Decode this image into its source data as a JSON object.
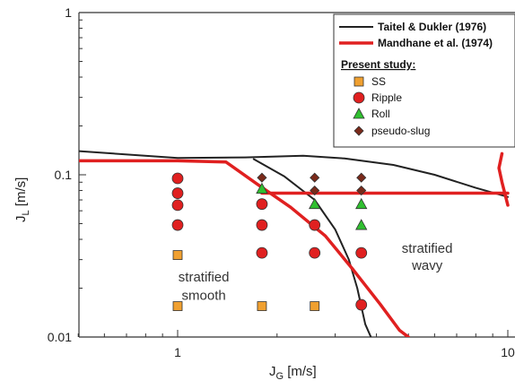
{
  "chart_data": {
    "type": "scatter",
    "x_axis": {
      "label_main": "J",
      "label_sub": "G",
      "label_unit": " [m/s]",
      "scale": "log",
      "range": [
        0.5,
        10
      ],
      "tick_labels": [
        {
          "value": 1,
          "label": "1"
        },
        {
          "value": 10,
          "label": "10"
        }
      ]
    },
    "y_axis": {
      "label_main": "J",
      "label_sub": "L",
      "label_unit": " [m/s]",
      "scale": "log",
      "range": [
        0.01,
        1
      ],
      "tick_labels": [
        {
          "value": 1,
          "label": "1"
        },
        {
          "value": 0.1,
          "label": "0.1"
        },
        {
          "value": 0.01,
          "label": "0.01"
        }
      ]
    },
    "grid": false,
    "legend": {
      "placement": "top-right",
      "lines": [
        {
          "name": "Taitel & Dukler (1976)",
          "color": "#222222"
        },
        {
          "name": "Mandhane et al. (1974)",
          "color": "#e02020"
        }
      ],
      "heading": "Present study:",
      "markers": [
        {
          "name": "SS",
          "shape": "square",
          "color": "#f0a030"
        },
        {
          "name": "Ripple",
          "shape": "circle",
          "color": "#e02020"
        },
        {
          "name": "Roll",
          "shape": "triangle",
          "color": "#30c030"
        },
        {
          "name": "pseudo-slug",
          "shape": "diamond",
          "color": "#7a2a1a"
        }
      ]
    },
    "series": [
      {
        "name": "SS",
        "shape": "square",
        "color": "#f0a030",
        "points": [
          [
            1.0,
            0.032
          ],
          [
            1.0,
            0.0155
          ],
          [
            1.8,
            0.0155
          ],
          [
            2.6,
            0.0155
          ]
        ]
      },
      {
        "name": "Ripple",
        "shape": "circle",
        "color": "#e02020",
        "points": [
          [
            1.0,
            0.095
          ],
          [
            1.0,
            0.077
          ],
          [
            1.0,
            0.065
          ],
          [
            1.0,
            0.049
          ],
          [
            1.8,
            0.066
          ],
          [
            1.8,
            0.049
          ],
          [
            1.8,
            0.033
          ],
          [
            2.6,
            0.049
          ],
          [
            2.6,
            0.033
          ],
          [
            3.6,
            0.033
          ],
          [
            3.6,
            0.0158
          ]
        ]
      },
      {
        "name": "Roll",
        "shape": "triangle",
        "color": "#30c030",
        "points": [
          [
            1.8,
            0.082
          ],
          [
            2.6,
            0.066
          ],
          [
            3.6,
            0.066
          ],
          [
            3.6,
            0.049
          ]
        ]
      },
      {
        "name": "pseudo-slug",
        "shape": "diamond",
        "color": "#7a2a1a",
        "points": [
          [
            1.8,
            0.096
          ],
          [
            2.6,
            0.096
          ],
          [
            2.6,
            0.08
          ],
          [
            3.6,
            0.096
          ],
          [
            3.6,
            0.08
          ]
        ]
      }
    ],
    "curves": [
      {
        "name": "Taitel & Dukler (1976)",
        "color": "#222222",
        "width": 2,
        "segments": [
          [
            [
              0.5,
              0.14
            ],
            [
              1.0,
              0.127
            ],
            [
              1.6,
              0.128
            ],
            [
              2.4,
              0.131
            ],
            [
              3.2,
              0.126
            ],
            [
              4.5,
              0.115
            ],
            [
              6.0,
              0.1
            ],
            [
              8.0,
              0.083
            ],
            [
              10.0,
              0.073
            ]
          ],
          [
            [
              1.7,
              0.125
            ],
            [
              2.1,
              0.098
            ],
            [
              2.6,
              0.07
            ],
            [
              3.0,
              0.046
            ],
            [
              3.3,
              0.03
            ],
            [
              3.5,
              0.02
            ],
            [
              3.7,
              0.012
            ],
            [
              3.85,
              0.01
            ]
          ]
        ]
      },
      {
        "name": "Mandhane et al. (1974)",
        "color": "#e02020",
        "width": 3.5,
        "segments": [
          [
            [
              0.5,
              0.122
            ],
            [
              1.0,
              0.122
            ],
            [
              1.4,
              0.12
            ],
            [
              1.75,
              0.087
            ],
            [
              2.2,
              0.063
            ],
            [
              2.8,
              0.042
            ],
            [
              3.4,
              0.026
            ],
            [
              4.1,
              0.016
            ],
            [
              4.7,
              0.011
            ],
            [
              5.0,
              0.01
            ]
          ],
          [
            [
              1.8,
              0.077
            ],
            [
              10.0,
              0.077
            ]
          ],
          [
            [
              9.6,
              0.135
            ],
            [
              9.4,
              0.11
            ],
            [
              9.6,
              0.09
            ],
            [
              10.0,
              0.065
            ]
          ]
        ]
      }
    ],
    "annotations": [
      {
        "text": "stratified",
        "x": 1.2,
        "y": 0.022
      },
      {
        "text": "smooth",
        "x": 1.2,
        "y": 0.017
      },
      {
        "text": "stratified",
        "x": 5.7,
        "y": 0.033
      },
      {
        "text": "wavy",
        "x": 5.7,
        "y": 0.026
      }
    ]
  }
}
